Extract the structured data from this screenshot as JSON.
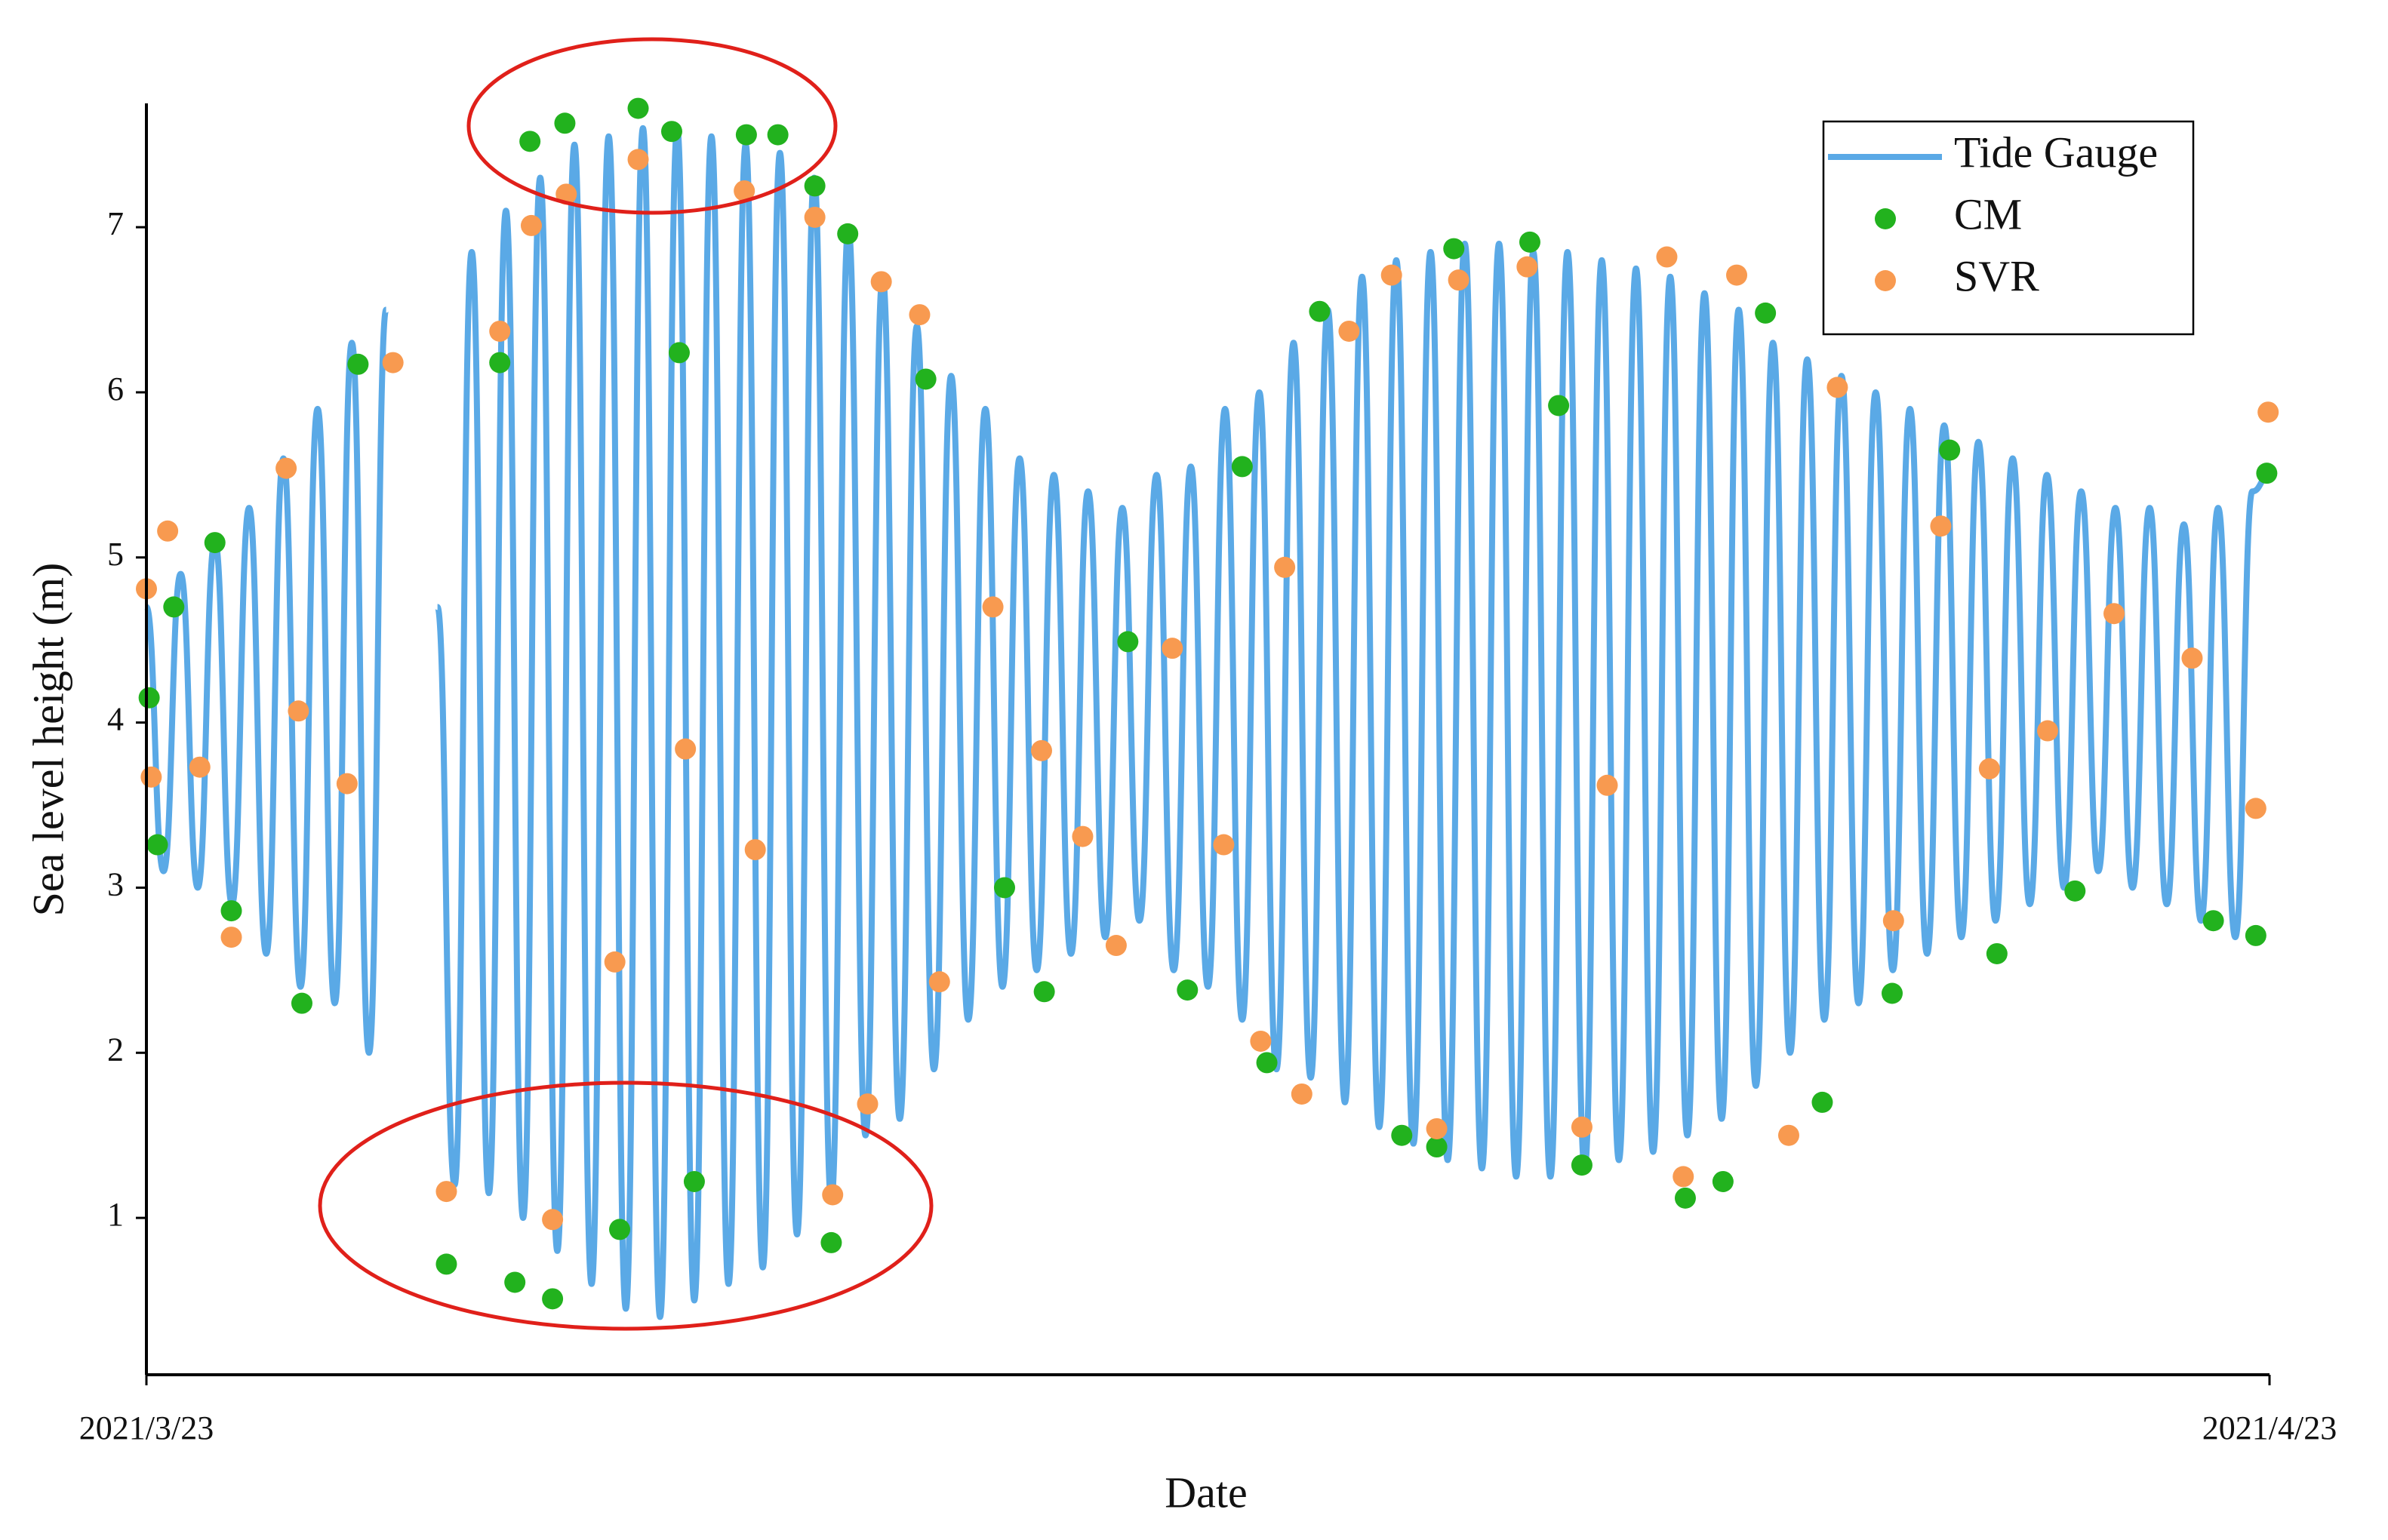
{
  "chart_data": {
    "type": "line",
    "xlabel": "Date",
    "ylabel": "Sea level height (m)",
    "xlim": [
      0,
      31
    ],
    "xticks": [
      {
        "value": 0,
        "label": "2021/3/23"
      },
      {
        "value": 31,
        "label": "2021/4/23"
      }
    ],
    "ylim": [
      0.05,
      7.75
    ],
    "yticks": [
      1,
      2,
      3,
      4,
      5,
      6,
      7
    ],
    "grid": false,
    "legend": "upper right",
    "series": [
      {
        "name": "Tide Gauge",
        "type": "line",
        "color": "#5aa9e6",
        "x": [
          0,
          0.25,
          0.5,
          0.75,
          1,
          1.25,
          1.5,
          1.75,
          2,
          2.25,
          2.5,
          2.75,
          3,
          3.25,
          3.5,
          3.75,
          4,
          4.25,
          4.5,
          4.75,
          5,
          5.25,
          5.5,
          5.75,
          6,
          6.25,
          6.5,
          6.75,
          7,
          7.25,
          7.5,
          7.75,
          8,
          8.25,
          8.5,
          8.75,
          9,
          9.25,
          9.5,
          9.75,
          10,
          10.25,
          10.5,
          10.75,
          11,
          11.25,
          11.5,
          11.75,
          12,
          12.25,
          12.5,
          12.75,
          13,
          13.25,
          13.5,
          13.75,
          14,
          14.25,
          14.5,
          14.75,
          15,
          15.25,
          15.5,
          15.75,
          16,
          16.25,
          16.5,
          16.75,
          17,
          17.25,
          17.5,
          17.75,
          18,
          18.25,
          18.5,
          18.75,
          19,
          19.25,
          19.5,
          19.75,
          20,
          20.25,
          20.5,
          20.75,
          21,
          21.25,
          21.5,
          21.75,
          22,
          22.25,
          22.5,
          22.75,
          23,
          23.25,
          23.5,
          23.75,
          24,
          24.25,
          24.5,
          24.75,
          25,
          25.25,
          25.5,
          25.75,
          26,
          26.25,
          26.5,
          26.75,
          27,
          27.25,
          27.5,
          27.75,
          28,
          28.25,
          28.5,
          28.75,
          29,
          29.25,
          29.5,
          29.75,
          30,
          30.25,
          30.5,
          30.75,
          31
        ],
        "values": [
          4.7,
          3.1,
          4.9,
          3.0,
          5.1,
          2.9,
          5.3,
          2.6,
          5.6,
          2.4,
          5.9,
          2.3,
          6.3,
          2.0,
          6.5,
          null,
          null,
          4.7,
          1.2,
          6.85,
          1.15,
          7.1,
          1.0,
          7.3,
          0.8,
          7.5,
          0.6,
          7.55,
          0.45,
          7.6,
          0.4,
          7.6,
          0.5,
          7.55,
          0.6,
          7.5,
          0.7,
          7.45,
          0.9,
          7.3,
          1.1,
          7.0,
          1.5,
          6.7,
          1.6,
          6.4,
          1.9,
          6.1,
          2.2,
          5.9,
          2.4,
          5.6,
          2.5,
          5.5,
          2.6,
          5.4,
          2.7,
          5.3,
          2.8,
          5.5,
          2.5,
          5.55,
          2.4,
          5.9,
          2.2,
          6.0,
          1.9,
          6.3,
          1.85,
          6.5,
          1.7,
          6.7,
          1.55,
          6.8,
          1.45,
          6.85,
          1.35,
          6.9,
          1.3,
          6.9,
          1.25,
          6.85,
          1.25,
          6.85,
          1.3,
          6.8,
          1.35,
          6.75,
          1.4,
          6.7,
          1.5,
          6.6,
          1.6,
          6.5,
          1.8,
          6.3,
          2.0,
          6.2,
          2.2,
          6.1,
          2.3,
          6.0,
          2.5,
          5.9,
          2.6,
          5.8,
          2.7,
          5.7,
          2.8,
          5.6,
          2.9,
          5.5,
          3.0,
          5.4,
          3.1,
          5.3,
          3.0,
          5.3,
          2.9,
          5.2,
          2.8,
          5.3,
          2.7,
          5.4,
          5.5
        ]
      },
      {
        "name": "CM",
        "type": "scatter",
        "color": "#22b21e",
        "x": [
          0.04,
          0.16,
          0.4,
          1.0,
          1.24,
          2.27,
          3.09,
          4.38,
          5.16,
          5.6,
          6.11,
          5.93,
          5.38,
          6.91,
          7.18,
          7.67,
          7.78,
          8.0,
          8.76,
          9.22,
          9.76,
          10.0,
          10.24,
          11.38,
          12.53,
          13.11,
          14.33,
          15.2,
          16.0,
          16.36,
          17.13,
          18.33,
          18.84,
          19.09,
          20.2,
          20.62,
          20.96,
          22.47,
          23.02,
          23.64,
          24.47,
          25.49,
          26.33,
          27.02,
          28.16,
          30.18,
          30.8,
          30.96
        ],
        "values": [
          4.15,
          3.26,
          4.7,
          5.09,
          2.86,
          2.3,
          6.17,
          0.72,
          6.18,
          7.52,
          7.63,
          0.51,
          0.61,
          0.93,
          7.72,
          7.58,
          6.24,
          1.22,
          7.56,
          7.56,
          7.25,
          0.85,
          6.96,
          6.08,
          3.0,
          2.37,
          4.49,
          2.38,
          5.55,
          1.94,
          6.49,
          1.5,
          1.43,
          6.87,
          6.91,
          5.92,
          1.32,
          1.12,
          1.22,
          6.48,
          1.7,
          2.36,
          5.65,
          2.6,
          2.98,
          2.8,
          2.71,
          5.51
        ]
      },
      {
        "name": "SVR",
        "type": "scatter",
        "color": "#f89a50",
        "x": [
          0,
          0.07,
          0.31,
          0.78,
          1.24,
          2.04,
          2.22,
          2.93,
          3.6,
          4.38,
          5.16,
          5.62,
          5.93,
          6.13,
          6.84,
          7.18,
          7.87,
          8.73,
          8.89,
          9.76,
          10.02,
          10.53,
          10.73,
          11.29,
          11.58,
          12.36,
          13.07,
          13.67,
          14.16,
          14.98,
          15.73,
          16.27,
          16.62,
          16.87,
          17.56,
          18.18,
          18.84,
          19.16,
          20.16,
          20.96,
          21.33,
          22.2,
          22.44,
          23.22,
          23.98,
          24.69,
          25.51,
          26.2,
          26.91,
          27.76,
          28.73,
          29.87,
          30.8,
          30.98
        ],
        "values": [
          4.81,
          3.67,
          5.16,
          3.73,
          2.7,
          5.54,
          4.07,
          3.63,
          6.18,
          1.16,
          6.37,
          7.01,
          0.99,
          7.2,
          2.55,
          7.41,
          3.84,
          7.22,
          3.23,
          7.06,
          1.14,
          1.69,
          6.67,
          6.47,
          2.43,
          4.7,
          3.83,
          3.31,
          2.65,
          4.45,
          3.26,
          2.07,
          4.94,
          1.75,
          6.37,
          6.71,
          1.54,
          6.68,
          6.76,
          1.55,
          3.62,
          6.82,
          1.25,
          6.71,
          1.5,
          6.03,
          2.8,
          5.19,
          3.72,
          3.95,
          4.66,
          4.39,
          3.48,
          5.88
        ]
      }
    ]
  }
}
